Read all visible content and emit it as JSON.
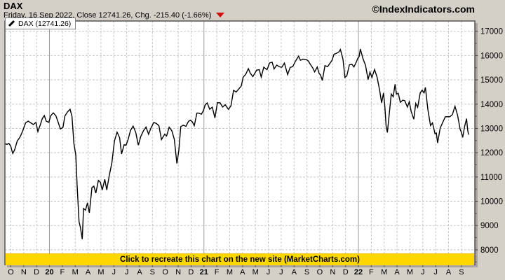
{
  "header": {
    "title": "DAX",
    "subtitle": "Friday, 16 Sep 2022, Close 12741.26, Chg. -215.40 (-1.66%)",
    "change_direction": "down",
    "copyright": "©IndexIndicators.com"
  },
  "legend": {
    "label": "DAX (12741.26)"
  },
  "banner": {
    "text": "Click to recreate this chart on the new site (MarketCharts.com)"
  },
  "colors": {
    "background": "#d4d0c8",
    "plot_background": "#ffffff",
    "series_line": "#000000",
    "grid": "#c8c8c8",
    "year_line": "#9a9a9a",
    "border": "#4a4a4a",
    "shadow": "#a9a59d",
    "banner_bg": "#ffd700",
    "triangle_red": "#cf1110"
  },
  "chart_data": {
    "type": "line",
    "title": "DAX",
    "xlabel": "",
    "ylabel": "",
    "x_start": "Sep 2019",
    "x_end": "Sep 2022",
    "last_close": 12741.26,
    "x_tick_labels": [
      "O",
      "N",
      "D",
      "20",
      "F",
      "M",
      "A",
      "M",
      "J",
      "J",
      "A",
      "S",
      "O",
      "N",
      "D",
      "21",
      "F",
      "M",
      "A",
      "M",
      "J",
      "J",
      "A",
      "S",
      "O",
      "N",
      "D",
      "22",
      "F",
      "M",
      "A",
      "M",
      "J",
      "J",
      "A",
      "S"
    ],
    "x_year_label_indices": [
      3,
      15,
      27
    ],
    "y_ticks": [
      8000,
      9000,
      10000,
      11000,
      12000,
      13000,
      14000,
      15000,
      16000,
      17000
    ],
    "y_minor_step": 500,
    "ylim": [
      7392,
      17424
    ],
    "grid": "dashed monthly vertical, solid vertical at year starts, dashed horizontal every 1000",
    "legend_position": "top-left",
    "series": [
      {
        "name": "DAX",
        "color": "#000000",
        "points_month_value": [
          [
            -0.46,
            12372
          ],
          [
            -0.3,
            12343
          ],
          [
            -0.15,
            12381
          ],
          [
            0.0,
            12264
          ],
          [
            0.08,
            12098
          ],
          [
            0.15,
            11970
          ],
          [
            0.3,
            12120
          ],
          [
            0.5,
            12487
          ],
          [
            0.7,
            12630
          ],
          [
            0.9,
            12870
          ],
          [
            1.15,
            13230
          ],
          [
            1.35,
            13300
          ],
          [
            1.55,
            13230
          ],
          [
            1.75,
            13160
          ],
          [
            1.95,
            13250
          ],
          [
            2.1,
            12870
          ],
          [
            2.3,
            13170
          ],
          [
            2.45,
            13410
          ],
          [
            2.6,
            13530
          ],
          [
            2.75,
            13300
          ],
          [
            2.95,
            13250
          ],
          [
            3.1,
            13520
          ],
          [
            3.3,
            13640
          ],
          [
            3.5,
            13520
          ],
          [
            3.65,
            13300
          ],
          [
            3.85,
            12980
          ],
          [
            4.05,
            13045
          ],
          [
            4.2,
            13510
          ],
          [
            4.4,
            13680
          ],
          [
            4.6,
            13790
          ],
          [
            4.75,
            13500
          ],
          [
            4.9,
            12370
          ],
          [
            5.05,
            11890
          ],
          [
            5.15,
            10625
          ],
          [
            5.3,
            9160
          ],
          [
            5.4,
            8930
          ],
          [
            5.55,
            8442
          ],
          [
            5.65,
            9700
          ],
          [
            5.8,
            9632
          ],
          [
            5.95,
            9936
          ],
          [
            6.1,
            9526
          ],
          [
            6.3,
            10565
          ],
          [
            6.45,
            10625
          ],
          [
            6.6,
            10336
          ],
          [
            6.8,
            10861
          ],
          [
            6.95,
            10790
          ],
          [
            7.1,
            10466
          ],
          [
            7.3,
            10904
          ],
          [
            7.45,
            10465
          ],
          [
            7.65,
            11073
          ],
          [
            7.85,
            11586
          ],
          [
            8.05,
            12487
          ],
          [
            8.25,
            12847
          ],
          [
            8.45,
            12620
          ],
          [
            8.6,
            11950
          ],
          [
            8.8,
            12330
          ],
          [
            8.95,
            12311
          ],
          [
            9.1,
            12528
          ],
          [
            9.3,
            12920
          ],
          [
            9.5,
            13096
          ],
          [
            9.7,
            12838
          ],
          [
            9.9,
            12313
          ],
          [
            10.1,
            12674
          ],
          [
            10.3,
            12901
          ],
          [
            10.5,
            13057
          ],
          [
            10.7,
            12764
          ],
          [
            10.9,
            13033
          ],
          [
            11.1,
            13243
          ],
          [
            11.3,
            13203
          ],
          [
            11.5,
            13116
          ],
          [
            11.7,
            12542
          ],
          [
            11.95,
            12761
          ],
          [
            12.1,
            12689
          ],
          [
            12.3,
            13052
          ],
          [
            12.5,
            12909
          ],
          [
            12.7,
            12558
          ],
          [
            12.9,
            11556
          ],
          [
            13.05,
            12097
          ],
          [
            13.2,
            13076
          ],
          [
            13.4,
            13133
          ],
          [
            13.6,
            13086
          ],
          [
            13.8,
            13291
          ],
          [
            13.95,
            13336
          ],
          [
            14.1,
            13271
          ],
          [
            14.25,
            13114
          ],
          [
            14.45,
            13630
          ],
          [
            14.6,
            13631
          ],
          [
            14.8,
            13587
          ],
          [
            14.95,
            13719
          ],
          [
            15.1,
            13968
          ],
          [
            15.25,
            14050
          ],
          [
            15.45,
            13788
          ],
          [
            15.65,
            13874
          ],
          [
            15.85,
            13433
          ],
          [
            16.05,
            14060
          ],
          [
            16.25,
            14057
          ],
          [
            16.45,
            13880
          ],
          [
            16.65,
            13976
          ],
          [
            16.9,
            13786
          ],
          [
            17.1,
            13931
          ],
          [
            17.3,
            14569
          ],
          [
            17.5,
            14502
          ],
          [
            17.7,
            14621
          ],
          [
            17.9,
            14749
          ],
          [
            18.05,
            15108
          ],
          [
            18.25,
            15234
          ],
          [
            18.45,
            15460
          ],
          [
            18.6,
            15280
          ],
          [
            18.8,
            15136
          ],
          [
            19.1,
            15400
          ],
          [
            19.3,
            15417
          ],
          [
            19.45,
            15114
          ],
          [
            19.65,
            15520
          ],
          [
            19.9,
            15421
          ],
          [
            20.1,
            15693
          ],
          [
            20.3,
            15730
          ],
          [
            20.45,
            15448
          ],
          [
            20.65,
            15608
          ],
          [
            20.9,
            15531
          ],
          [
            21.05,
            15520
          ],
          [
            21.25,
            15690
          ],
          [
            21.5,
            15216
          ],
          [
            21.7,
            15514
          ],
          [
            21.9,
            15544
          ],
          [
            22.1,
            15761
          ],
          [
            22.35,
            15977
          ],
          [
            22.5,
            15808
          ],
          [
            22.7,
            15852
          ],
          [
            22.95,
            15835
          ],
          [
            23.1,
            15781
          ],
          [
            23.3,
            15610
          ],
          [
            23.45,
            15490
          ],
          [
            23.6,
            15328
          ],
          [
            23.8,
            15531
          ],
          [
            23.95,
            15261
          ],
          [
            24.05,
            15206
          ],
          [
            24.2,
            14973
          ],
          [
            24.4,
            15587
          ],
          [
            24.6,
            15543
          ],
          [
            24.8,
            15689
          ],
          [
            24.95,
            15806
          ],
          [
            25.1,
            16054
          ],
          [
            25.3,
            16094
          ],
          [
            25.5,
            16160
          ],
          [
            25.6,
            16251
          ],
          [
            25.8,
            15849
          ],
          [
            25.95,
            15100
          ],
          [
            26.1,
            15169
          ],
          [
            26.3,
            15623
          ],
          [
            26.5,
            15636
          ],
          [
            26.65,
            15531
          ],
          [
            26.85,
            15756
          ],
          [
            26.95,
            15885
          ],
          [
            27.05,
            15948
          ],
          [
            27.15,
            16271
          ],
          [
            27.35,
            15883
          ],
          [
            27.55,
            15604
          ],
          [
            27.75,
            15011
          ],
          [
            27.9,
            15319
          ],
          [
            28.05,
            15100
          ],
          [
            28.25,
            15425
          ],
          [
            28.45,
            15113
          ],
          [
            28.65,
            14567
          ],
          [
            28.8,
            14052
          ],
          [
            28.95,
            14461
          ],
          [
            29.05,
            13905
          ],
          [
            29.15,
            13095
          ],
          [
            29.25,
            12831
          ],
          [
            29.4,
            13628
          ],
          [
            29.55,
            14414
          ],
          [
            29.7,
            14306
          ],
          [
            29.85,
            14820
          ],
          [
            29.95,
            14415
          ],
          [
            30.1,
            14446
          ],
          [
            30.25,
            14076
          ],
          [
            30.45,
            14163
          ],
          [
            30.6,
            14142
          ],
          [
            30.8,
            13880
          ],
          [
            30.95,
            14098
          ],
          [
            31.1,
            13690
          ],
          [
            31.3,
            13380
          ],
          [
            31.45,
            14028
          ],
          [
            31.6,
            13869
          ],
          [
            31.8,
            14462
          ],
          [
            31.95,
            14576
          ],
          [
            32.1,
            14460
          ],
          [
            32.2,
            14690
          ],
          [
            32.4,
            13762
          ],
          [
            32.6,
            13118
          ],
          [
            32.75,
            13231
          ],
          [
            32.95,
            12784
          ],
          [
            33.05,
            12813
          ],
          [
            33.15,
            12401
          ],
          [
            33.35,
            13016
          ],
          [
            33.55,
            13254
          ],
          [
            33.75,
            13480
          ],
          [
            33.95,
            13484
          ],
          [
            34.1,
            13479
          ],
          [
            34.3,
            13574
          ],
          [
            34.5,
            13910
          ],
          [
            34.7,
            13545
          ],
          [
            34.9,
            12971
          ],
          [
            35.0,
            12835
          ],
          [
            35.1,
            12630
          ],
          [
            35.25,
            13088
          ],
          [
            35.4,
            13402
          ],
          [
            35.48,
            12956
          ],
          [
            35.55,
            12741
          ]
        ]
      }
    ]
  }
}
